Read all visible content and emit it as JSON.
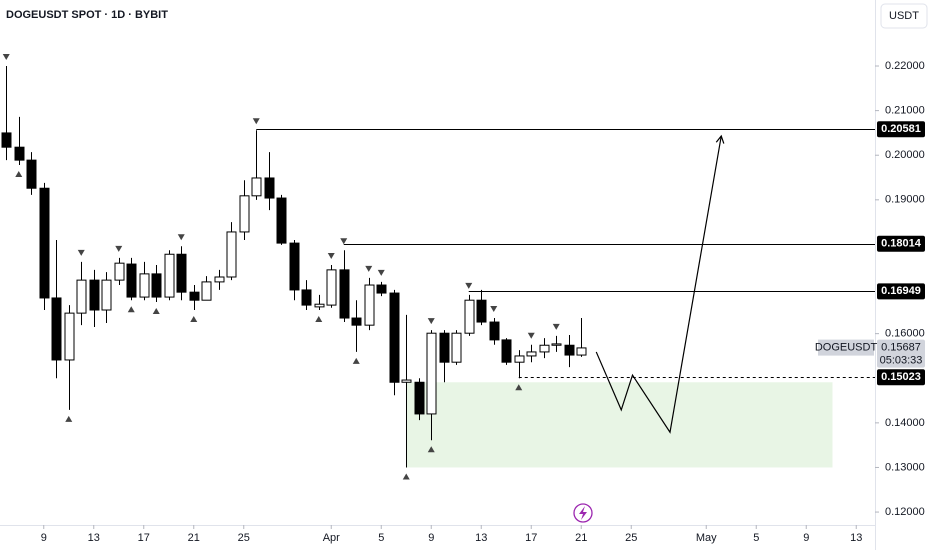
{
  "chart_data": {
    "type": "candlestick",
    "title": "DOGEUSDT SPOT · 1D · BYBIT",
    "currency": "USDT",
    "x": [
      0,
      1,
      2,
      3,
      4,
      5,
      6,
      7,
      8,
      9,
      10,
      11,
      12,
      13,
      14,
      15,
      16,
      17,
      18,
      19,
      20,
      21,
      22,
      23,
      24,
      25,
      26,
      27,
      28,
      29,
      30,
      31,
      32,
      33,
      34,
      35,
      36,
      37,
      38,
      39,
      40,
      41,
      42,
      43,
      44,
      45,
      46
    ],
    "open": [
      0.205,
      0.2018,
      0.1989,
      0.1926,
      0.168,
      0.1541,
      0.1646,
      0.172,
      0.1653,
      0.172,
      0.1756,
      0.1682,
      0.1734,
      0.1682,
      0.1778,
      0.1693,
      0.1675,
      0.1716,
      0.1727,
      0.1828,
      0.1909,
      0.1949,
      0.1904,
      0.1803,
      0.1698,
      0.166,
      0.1664,
      0.1743,
      0.1635,
      0.1619,
      0.1709,
      0.1691,
      0.1491,
      0.1491,
      0.142,
      0.1601,
      0.1536,
      0.1601,
      0.1675,
      0.1626,
      0.1586,
      0.1536,
      0.155,
      0.1559,
      0.1574,
      0.1574,
      0.1552
    ],
    "high": [
      0.22,
      0.2086,
      0.2007,
      0.1938,
      0.181,
      0.1664,
      0.1761,
      0.1743,
      0.1738,
      0.177,
      0.177,
      0.1761,
      0.1754,
      0.1787,
      0.1796,
      0.1709,
      0.1729,
      0.1743,
      0.185,
      0.1944,
      0.2056,
      0.2007,
      0.1911,
      0.181,
      0.172,
      0.1687,
      0.1754,
      0.1787,
      0.1675,
      0.1725,
      0.1716,
      0.1698,
      0.1642,
      0.15,
      0.1608,
      0.1608,
      0.1608,
      0.1687,
      0.1698,
      0.1635,
      0.159,
      0.1563,
      0.1575,
      0.159,
      0.1595,
      0.1597,
      0.1635
    ],
    "low": [
      0.1989,
      0.1978,
      0.1911,
      0.1653,
      0.15,
      0.1429,
      0.1619,
      0.1615,
      0.1624,
      0.1709,
      0.1675,
      0.1675,
      0.1671,
      0.1675,
      0.1675,
      0.1653,
      0.1675,
      0.1698,
      0.172,
      0.181,
      0.19,
      0.1877,
      0.1799,
      0.1675,
      0.1653,
      0.1653,
      0.1658,
      0.1626,
      0.1559,
      0.1608,
      0.1684,
      0.1462,
      0.13,
      0.1406,
      0.1361,
      0.1491,
      0.153,
      0.1595,
      0.1619,
      0.1575,
      0.153,
      0.15,
      0.1536,
      0.1545,
      0.1559,
      0.1525,
      0.1548
    ],
    "close": [
      0.2018,
      0.1989,
      0.1926,
      0.168,
      0.1541,
      0.1646,
      0.172,
      0.1653,
      0.172,
      0.1758,
      0.1682,
      0.1734,
      0.1682,
      0.1778,
      0.1693,
      0.1675,
      0.1716,
      0.1727,
      0.1828,
      0.1909,
      0.1949,
      0.1904,
      0.1803,
      0.1698,
      0.1664,
      0.1666,
      0.1743,
      0.1635,
      0.1619,
      0.1709,
      0.1691,
      0.1491,
      0.1496,
      0.142,
      0.1601,
      0.1536,
      0.1601,
      0.1675,
      0.1626,
      0.1586,
      0.1536,
      0.155,
      0.1559,
      0.1574,
      0.1577,
      0.1552,
      0.1568
    ],
    "up_color": "#ffffff",
    "down_color": "#000000",
    "markers_down": [
      0,
      6,
      9,
      14,
      20,
      26,
      27,
      29,
      30,
      34,
      37,
      39,
      42,
      44
    ],
    "markers_up": [
      1,
      5,
      10,
      12,
      15,
      25,
      28,
      32,
      34,
      41
    ],
    "levels": [
      {
        "value": 0.20581,
        "start": 20
      },
      {
        "value": 0.18014,
        "start": 27
      },
      {
        "value": 0.16949,
        "start": 37
      },
      {
        "value": 0.15023,
        "start": 41,
        "style": "dashed"
      }
    ],
    "zone": {
      "x": [
        32,
        66.1
      ],
      "y": [
        0.13,
        0.1491
      ],
      "color": "#e8f5e5"
    },
    "projection": {
      "x": [
        47.2,
        49.2,
        50.1,
        53.1,
        57.2
      ],
      "y": [
        0.1559,
        0.1429,
        0.1507,
        0.1379,
        0.2043
      ]
    },
    "last_price": {
      "symbol": "DOGEUSDT",
      "value": 0.15687,
      "countdown": "05:03:33"
    },
    "xlim": [
      -0.5,
      69.5
    ],
    "ylim": [
      0.1171,
      0.2348
    ],
    "xticks": [
      {
        "value": 3,
        "label": "9"
      },
      {
        "value": 7,
        "label": "13"
      },
      {
        "value": 11,
        "label": "17"
      },
      {
        "value": 15,
        "label": "21"
      },
      {
        "value": 19,
        "label": "25"
      },
      {
        "value": 26,
        "label": "Apr"
      },
      {
        "value": 30,
        "label": "5"
      },
      {
        "value": 34,
        "label": "9"
      },
      {
        "value": 38,
        "label": "13"
      },
      {
        "value": 42,
        "label": "17"
      },
      {
        "value": 46,
        "label": "21"
      },
      {
        "value": 50,
        "label": "25"
      },
      {
        "value": 56,
        "label": "May"
      },
      {
        "value": 60,
        "label": "5"
      },
      {
        "value": 64,
        "label": "9"
      },
      {
        "value": 68,
        "label": "13"
      }
    ],
    "yticks": [
      {
        "value": 0.12,
        "label": "0.12000"
      },
      {
        "value": 0.13,
        "label": "0.13000"
      },
      {
        "value": 0.14,
        "label": "0.14000"
      },
      {
        "value": 0.16,
        "label": "0.16000"
      },
      {
        "value": 0.19,
        "label": "0.19000"
      },
      {
        "value": 0.2,
        "label": "0.20000"
      },
      {
        "value": 0.21,
        "label": "0.21000"
      },
      {
        "value": 0.22,
        "label": "0.22000"
      }
    ],
    "grid": false
  }
}
